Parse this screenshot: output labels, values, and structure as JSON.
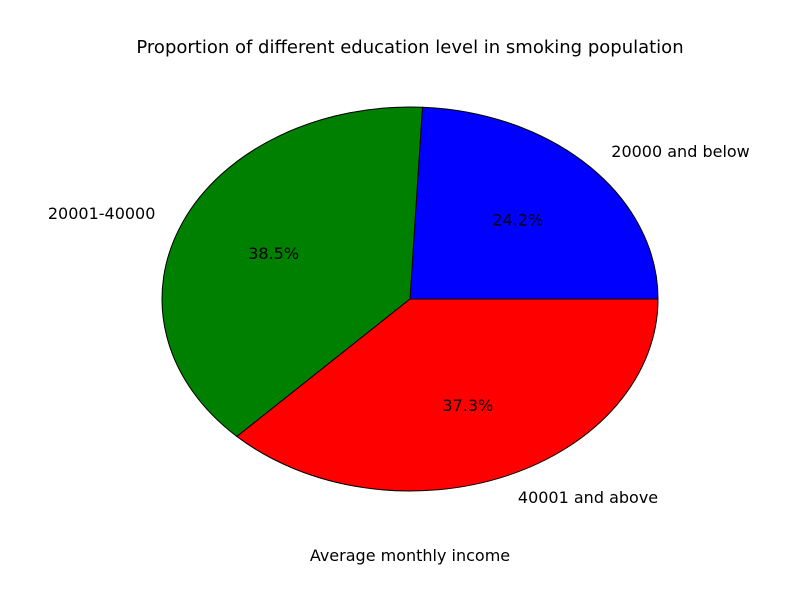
{
  "chart_data": {
    "type": "pie",
    "title": "Proportion of different education level in smoking population",
    "xlabel": "Average monthly income",
    "slices": [
      {
        "label": "20000 and below",
        "percent": 24.2,
        "percent_label": "24.2%",
        "color": "#0000ff"
      },
      {
        "label": "20001-40000",
        "percent": 38.5,
        "percent_label": "38.5%",
        "color": "#008000"
      },
      {
        "label": "40001 and above",
        "percent": 37.3,
        "percent_label": "37.3%",
        "color": "#ff0000"
      }
    ],
    "start_angle_deg": 0,
    "direction": "counterclockwise"
  }
}
